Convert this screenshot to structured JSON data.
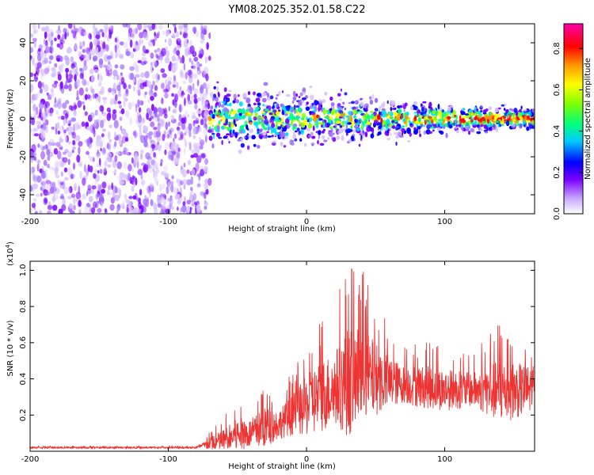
{
  "title": "YM08.2025.352.01.58.C22",
  "colors": {
    "snr_line": "#ee3333",
    "colormap": [
      "#ffffff",
      "#7a00ff",
      "#0000ff",
      "#00e0ff",
      "#00ff80",
      "#90ff00",
      "#ffff00",
      "#ff9900",
      "#ff0000",
      "#ff00aa"
    ]
  },
  "chart_data": [
    {
      "type": "heatmap",
      "name": "spectrogram",
      "title": "",
      "xlabel": "Height of straight line (km)",
      "ylabel": "Frequency (Hz)",
      "xlim": [
        -200,
        165
      ],
      "ylim": [
        -50,
        50
      ],
      "xticks": [
        "-200",
        "-100",
        "0",
        "100"
      ],
      "yticks": [
        "-40",
        "-20",
        "0",
        "20",
        "40"
      ],
      "colorbar": {
        "label": "Normalized spectral amplitude",
        "range": [
          0,
          0.92
        ],
        "ticks": [
          "0.0",
          "0.2",
          "0.4",
          "0.6",
          "0.8"
        ]
      },
      "description_values": {
        "noise_region_x": [
          -200,
          -70
        ],
        "signal_start_x": -70,
        "signal_center_freq": 0,
        "signal_bandwidth_hz_start": 18,
        "signal_bandwidth_hz_end": 5,
        "peak_amplitude": 0.9
      }
    },
    {
      "type": "line",
      "name": "snr",
      "title": "",
      "xlabel": "Height of straight line (km)",
      "ylabel": "SNR (10 * v/v)",
      "y_scale_label": "(x10",
      "y_scale_exp": "4",
      "xlim": [
        -200,
        165
      ],
      "ylim": [
        0,
        1.05
      ],
      "xticks": [
        "-200",
        "-100",
        "0",
        "100"
      ],
      "yticks": [
        "0.2",
        "0.4",
        "0.6",
        "0.8",
        "1.0"
      ],
      "series": [
        {
          "name": "SNR",
          "envelope_x": [
            -200,
            -80,
            -60,
            -50,
            -40,
            -30,
            -20,
            -10,
            0,
            10,
            20,
            30,
            40,
            50,
            60,
            70,
            80,
            100,
            120,
            140,
            165
          ],
          "envelope_mean": [
            0.02,
            0.02,
            0.06,
            0.09,
            0.1,
            0.13,
            0.15,
            0.2,
            0.25,
            0.3,
            0.35,
            0.38,
            0.42,
            0.4,
            0.38,
            0.37,
            0.36,
            0.34,
            0.34,
            0.33,
            0.34
          ],
          "envelope_peak": [
            0.03,
            0.03,
            0.2,
            0.3,
            0.28,
            0.38,
            0.33,
            0.45,
            0.62,
            0.75,
            0.8,
            1.05,
            1.02,
            0.85,
            0.7,
            0.6,
            0.62,
            0.6,
            0.55,
            0.72,
            0.63
          ]
        }
      ]
    }
  ]
}
